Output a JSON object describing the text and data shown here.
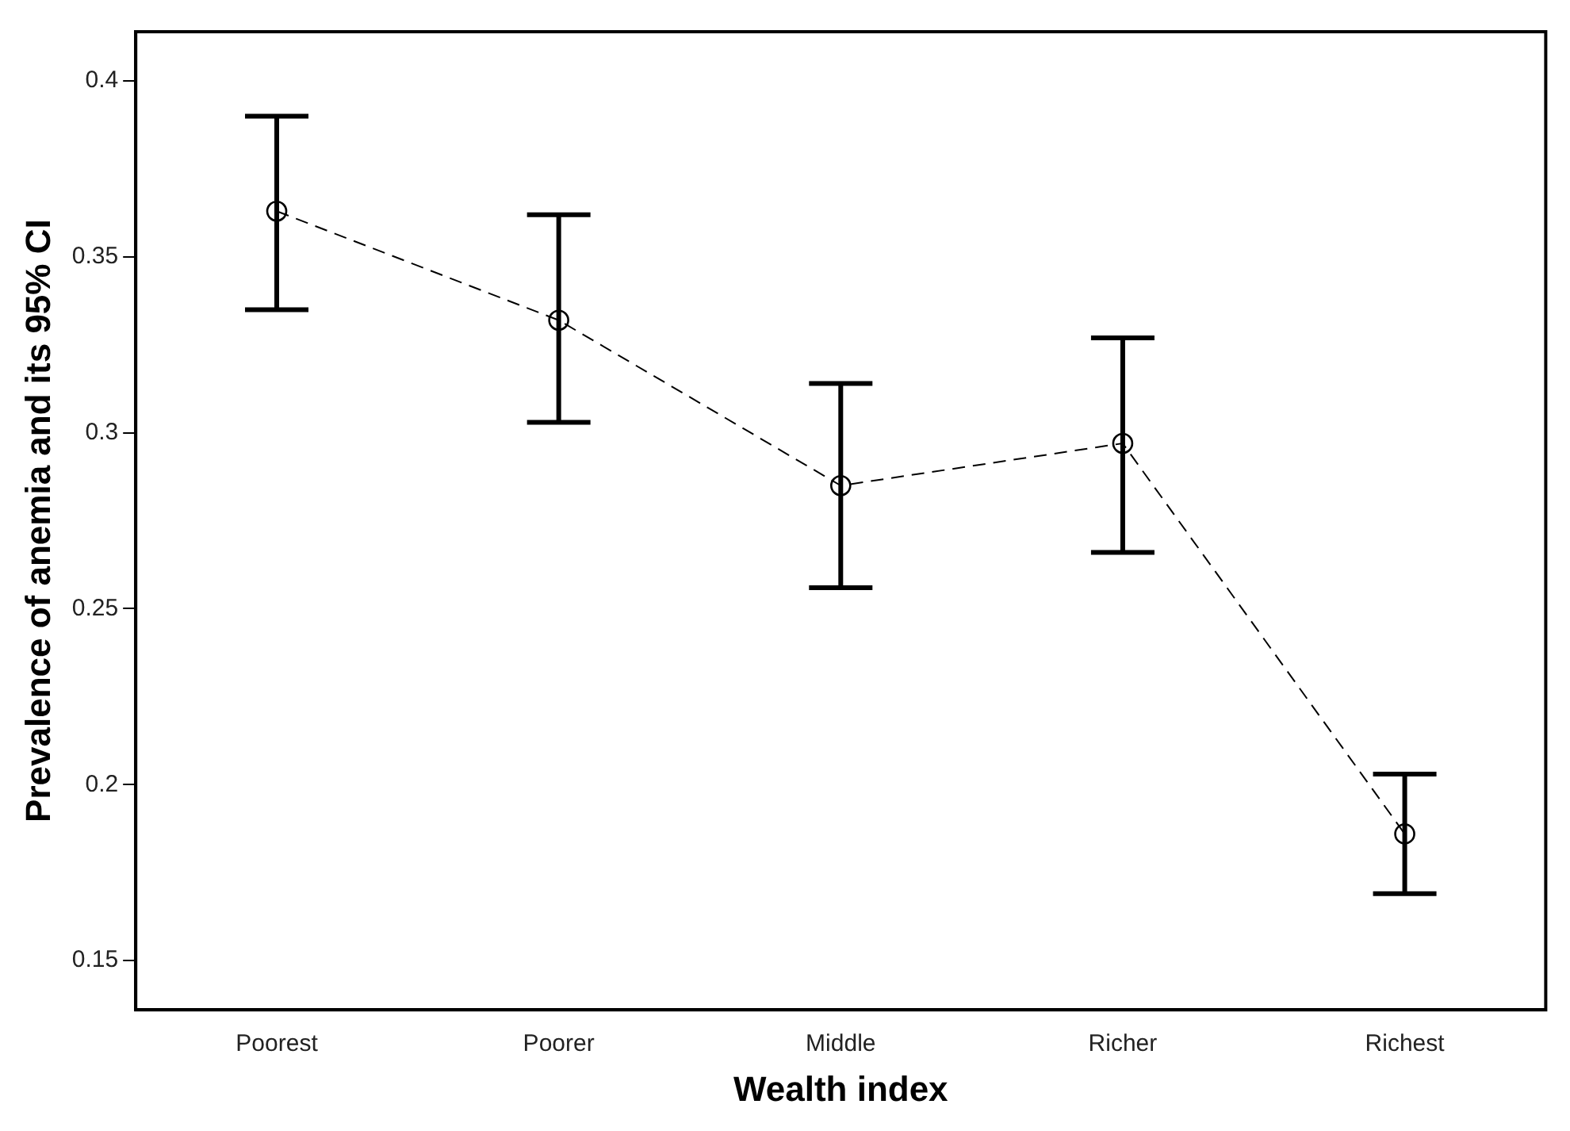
{
  "chart_data": {
    "type": "line",
    "xlabel": "Wealth index",
    "ylabel": "Prevalence of anemia and its 95% CI",
    "categories": [
      "Poorest",
      "Poorer",
      "Middle",
      "Richer",
      "Richest"
    ],
    "series": [
      {
        "color": "#000000",
        "values": [
          0.363,
          0.332,
          0.285,
          0.297,
          0.186
        ],
        "errors": [
          [
            0.335,
            0.39
          ],
          [
            0.303,
            0.362
          ],
          [
            0.256,
            0.314
          ],
          [
            0.266,
            0.327
          ],
          [
            0.169,
            0.203
          ]
        ]
      }
    ],
    "ylim": [
      0.136,
      0.414
    ],
    "yticks": [
      0.15,
      0.2,
      0.25,
      0.3,
      0.35,
      0.4
    ],
    "grid": false,
    "legend": false,
    "marker": "circle",
    "line_style": "dashed"
  }
}
